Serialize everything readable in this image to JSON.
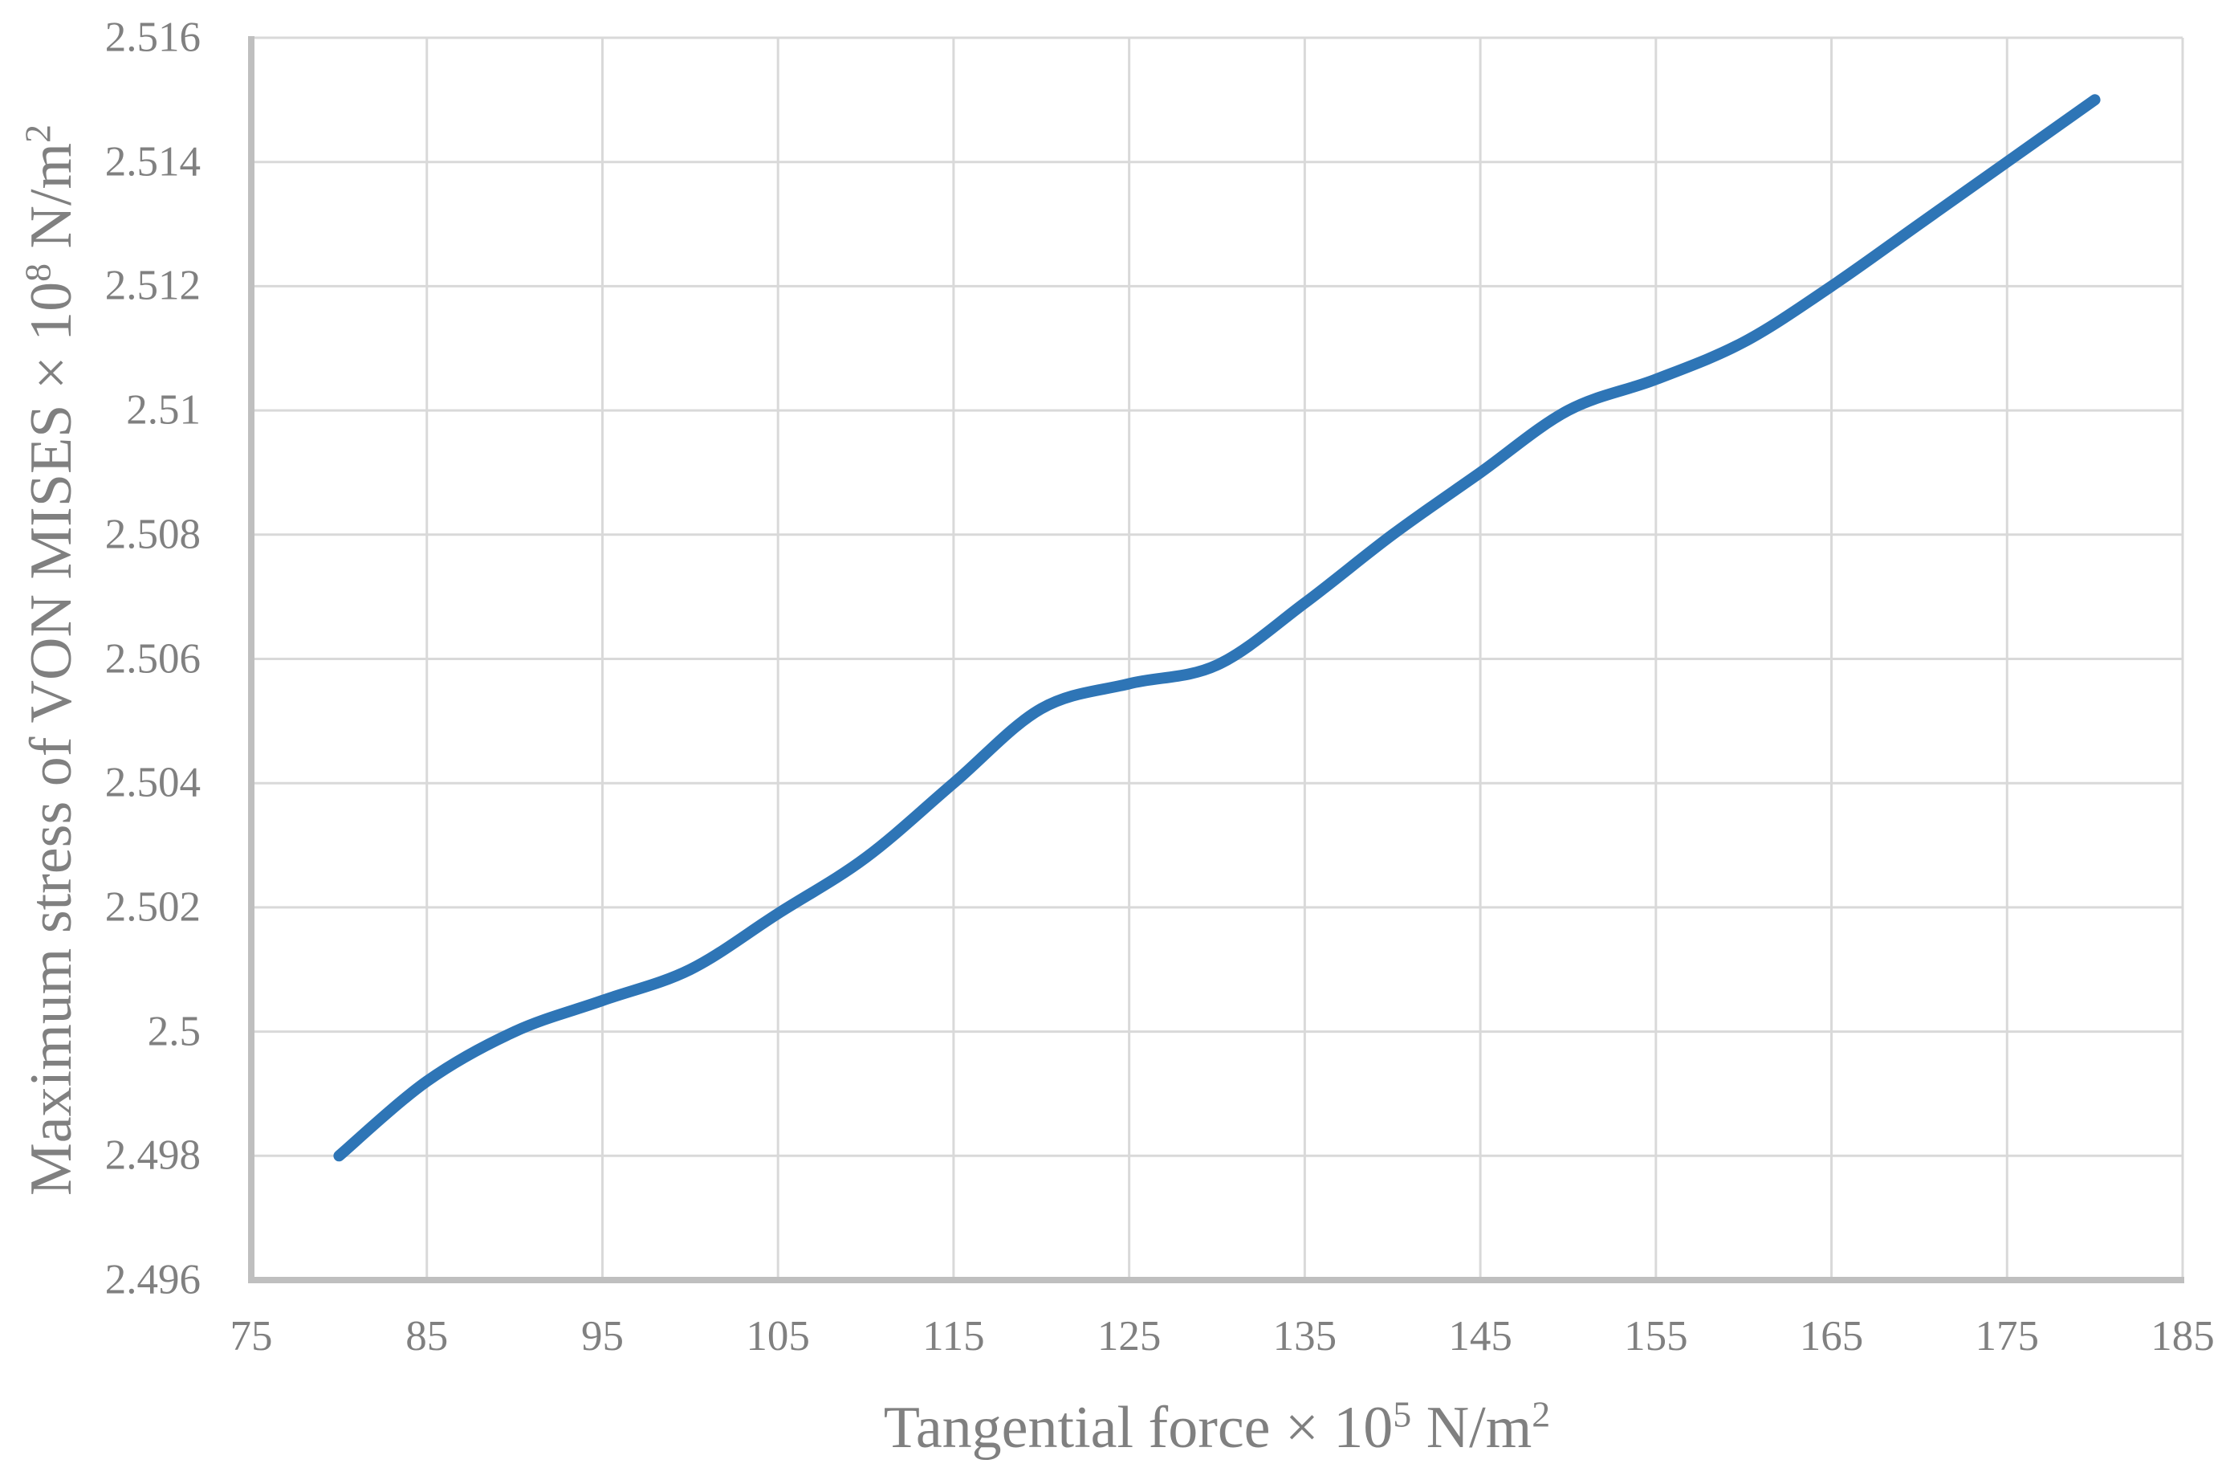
{
  "chart_data": {
    "type": "line",
    "title": "",
    "xlabel": "Tangential force × 10^5 N/m^2",
    "ylabel": "Maximum stress of VON MISES × 10^8 N/m^2",
    "xlabel_parts": {
      "text": "Tangential force × 10",
      "sup": "5",
      "unit": " N/m",
      "unit_sup": "2"
    },
    "ylabel_parts": {
      "text": "Maximum stress of VON MISES × 10",
      "sup": "8",
      "unit": " N/m",
      "unit_sup": "2"
    },
    "series": [
      {
        "name": "Maximum stress of VON MISES",
        "x": [
          80,
          85,
          90,
          95,
          100,
          105,
          110,
          115,
          120,
          125,
          130,
          135,
          140,
          145,
          150,
          155,
          160,
          165,
          170,
          175,
          180
        ],
        "y": [
          2.498,
          2.4992,
          2.5,
          2.5005,
          2.501,
          2.5019,
          2.5028,
          2.504,
          2.5052,
          2.5056,
          2.5059,
          2.5069,
          2.508,
          2.509,
          2.51,
          2.5105,
          2.5111,
          2.512,
          2.513,
          2.514,
          2.515
        ]
      }
    ],
    "xlim": [
      75,
      185
    ],
    "ylim": [
      2.496,
      2.516
    ],
    "x_tick_values": [
      75,
      85,
      95,
      105,
      115,
      125,
      135,
      145,
      155,
      165,
      175,
      185
    ],
    "x_tick_labels": [
      "75",
      "85",
      "95",
      "105",
      "115",
      "125",
      "135",
      "145",
      "155",
      "165",
      "175",
      "185"
    ],
    "y_tick_values": [
      2.496,
      2.498,
      2.5,
      2.502,
      2.504,
      2.506,
      2.508,
      2.51,
      2.512,
      2.514,
      2.516
    ],
    "y_tick_labels": [
      "2.496",
      "2.498",
      "2.5",
      "2.502",
      "2.504",
      "2.506",
      "2.508",
      "2.51",
      "2.512",
      "2.514",
      "2.516"
    ],
    "grid": true,
    "legend": "none",
    "line_smoothing": true,
    "colors": {
      "line": "#2E75B6",
      "gridline": "#D9D9D9",
      "axis_line": "#BFBFBF",
      "text": "#808080",
      "background": "#FFFFFF"
    }
  }
}
